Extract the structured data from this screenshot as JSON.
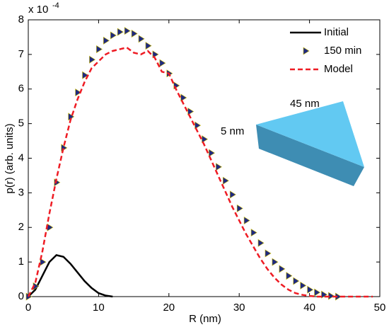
{
  "chart_data": {
    "type": "line",
    "xlabel": "R (nm)",
    "ylabel": "p(r) (arb. units)",
    "y_scale_base": "x 10",
    "y_scale_exponent": "-4",
    "xlim": [
      0,
      50
    ],
    "xticks": [
      0,
      10,
      20,
      30,
      40,
      50
    ],
    "ylim": [
      0,
      8
    ],
    "yticks": [
      0,
      1,
      2,
      3,
      4,
      5,
      6,
      7,
      8
    ],
    "legend": "upper right",
    "annotations": [
      "45 nm",
      "5 nm"
    ],
    "series": [
      {
        "name": "Initial",
        "color": "#000000",
        "style": "solid",
        "x": [
          0,
          1,
          2,
          3,
          4,
          5,
          6,
          7,
          8,
          9,
          10,
          11,
          12
        ],
        "values": [
          0,
          0.2,
          0.6,
          1.0,
          1.2,
          1.15,
          0.95,
          0.7,
          0.45,
          0.25,
          0.1,
          0.03,
          0
        ]
      },
      {
        "name": "150 min",
        "color": "#1f2a80",
        "style": "markers",
        "x": [
          0,
          1,
          2,
          3,
          4,
          5,
          6,
          7,
          8,
          9,
          10,
          11,
          12,
          13,
          14,
          15,
          16,
          17,
          18,
          19,
          20,
          21,
          22,
          23,
          24,
          25,
          26,
          27,
          28,
          29,
          30,
          31,
          32,
          33,
          34,
          35,
          36,
          37,
          38,
          39,
          40,
          41,
          42,
          43,
          44
        ],
        "values": [
          0,
          0.3,
          1.0,
          2.0,
          3.3,
          4.3,
          5.2,
          5.9,
          6.4,
          6.85,
          7.15,
          7.4,
          7.55,
          7.65,
          7.68,
          7.6,
          7.45,
          7.25,
          7.0,
          6.75,
          6.45,
          6.1,
          5.75,
          5.35,
          4.95,
          4.55,
          4.15,
          3.75,
          3.35,
          2.95,
          2.55,
          2.2,
          1.85,
          1.55,
          1.25,
          1.0,
          0.8,
          0.6,
          0.45,
          0.32,
          0.2,
          0.12,
          0.06,
          0.02,
          0
        ]
      },
      {
        "name": "Model",
        "color": "#ee1c24",
        "style": "dashed",
        "x": [
          0,
          1,
          2,
          3,
          4,
          5,
          6,
          7,
          8,
          9,
          10,
          11,
          12,
          13,
          14,
          15,
          16,
          17,
          18,
          19,
          20,
          21,
          22,
          23,
          24,
          25,
          26,
          27,
          28,
          29,
          30,
          31,
          32,
          33,
          34,
          35,
          36,
          37,
          38,
          39,
          40,
          41,
          42,
          43,
          44,
          45,
          46,
          47,
          48,
          49
        ],
        "values": [
          0,
          0.4,
          1.3,
          2.4,
          3.4,
          4.3,
          5.1,
          5.7,
          6.2,
          6.6,
          6.8,
          7.0,
          7.1,
          7.15,
          7.2,
          7.05,
          7.0,
          7.1,
          6.9,
          6.5,
          6.45,
          6.0,
          5.6,
          5.2,
          4.8,
          4.4,
          3.95,
          3.5,
          3.05,
          2.6,
          2.2,
          1.8,
          1.45,
          1.1,
          0.8,
          0.55,
          0.35,
          0.2,
          0.1,
          0.05,
          0.02,
          0,
          0,
          0,
          0,
          0,
          0,
          0,
          0,
          0
        ]
      }
    ]
  }
}
